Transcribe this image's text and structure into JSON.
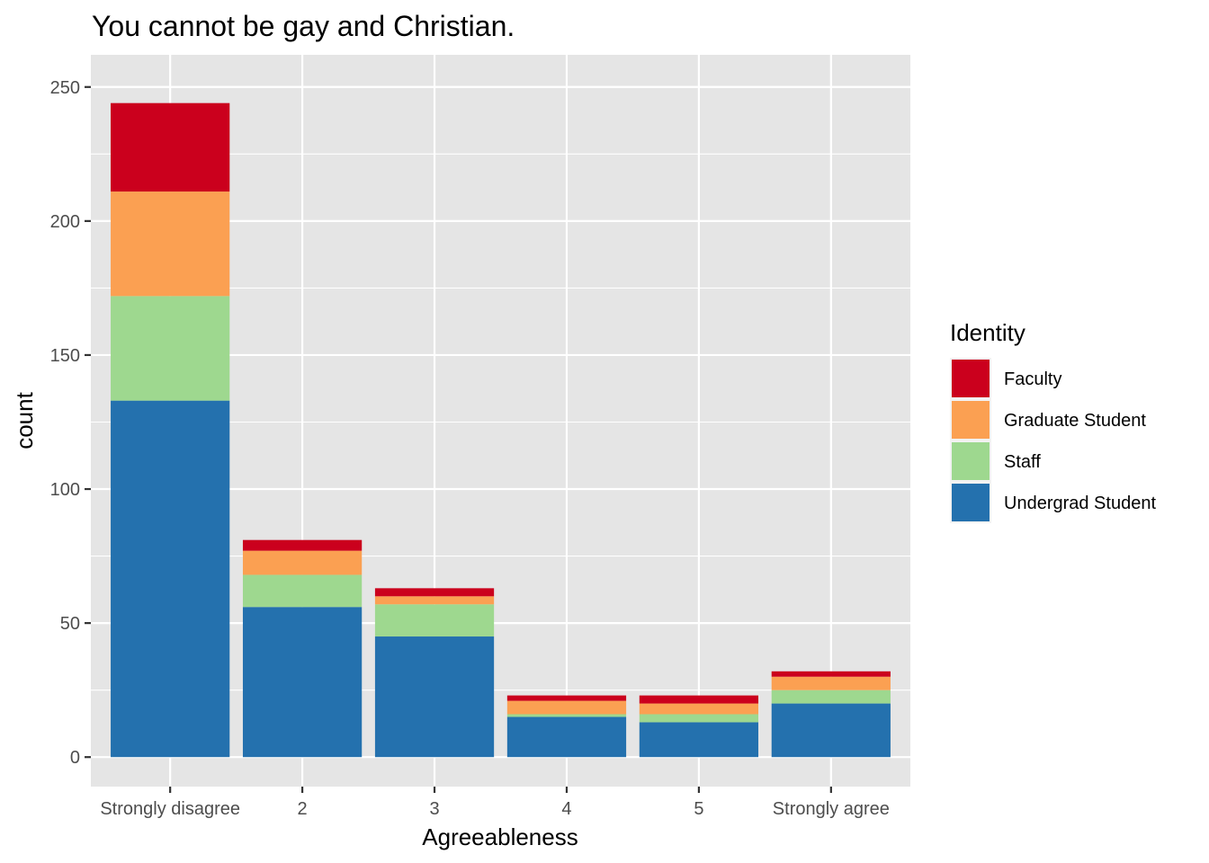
{
  "chart_data": {
    "type": "bar",
    "stacked": true,
    "title": "You cannot be gay and Christian.",
    "xlabel": "Agreeableness",
    "ylabel": "count",
    "categories": [
      "Strongly disagree",
      "2",
      "3",
      "4",
      "5",
      "Strongly agree"
    ],
    "y_ticks": [
      0,
      50,
      100,
      150,
      200,
      250
    ],
    "ylim": [
      -11,
      262
    ],
    "grid": true,
    "legend": {
      "title": "Identity",
      "position": "right",
      "order": [
        "Faculty",
        "Graduate Student",
        "Staff",
        "Undergrad Student"
      ]
    },
    "series": [
      {
        "name": "Undergrad Student",
        "color": "#2471AE",
        "values": [
          133,
          56,
          45,
          15,
          13,
          20
        ]
      },
      {
        "name": "Staff",
        "color": "#9ED88F",
        "values": [
          39,
          12,
          12,
          1,
          3,
          5
        ]
      },
      {
        "name": "Graduate Student",
        "color": "#FBA052",
        "values": [
          39,
          9,
          3,
          5,
          4,
          5
        ]
      },
      {
        "name": "Faculty",
        "color": "#CB001D",
        "values": [
          33,
          4,
          3,
          2,
          3,
          2
        ]
      }
    ],
    "colors": {
      "panel_background": "#E5E5E5",
      "grid_major": "#FFFFFF",
      "tick": "#333333"
    }
  }
}
